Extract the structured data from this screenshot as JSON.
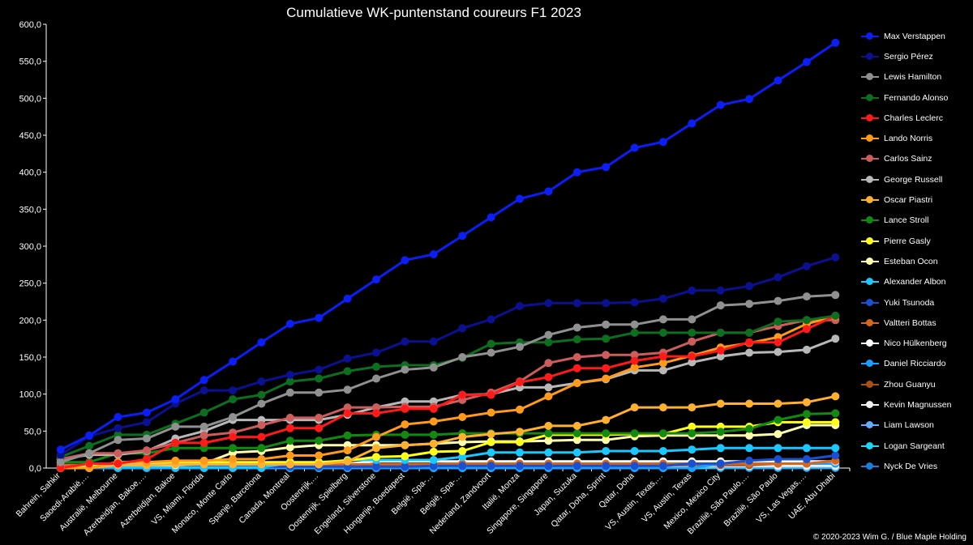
{
  "chart_data": {
    "type": "line",
    "title": "Cumulatieve WK-puntenstand coureurs F1 2023",
    "ylim": [
      0,
      600
    ],
    "ytick_labels": [
      "0,0",
      "50,0",
      "100,0",
      "150,0",
      "200,0",
      "250,0",
      "300,0",
      "350,0",
      "400,0",
      "450,0",
      "500,0",
      "550,0",
      "600,0"
    ],
    "ytick_values": [
      0,
      50,
      100,
      150,
      200,
      250,
      300,
      350,
      400,
      450,
      500,
      550,
      600
    ],
    "grid": false,
    "legend_position": "right",
    "categories": [
      "Bahrein, Sahkir",
      "Saoedi-Arabië,…",
      "Australië, Melbourne",
      "Azerbeidjan, Bakoe,…",
      "Azerbeidjan, Bakoe",
      "VS, Miami, Florida",
      "Monaco, Monte Carlo",
      "Spanje, Barcelona",
      "Canada, Montreal",
      "Oostenrijk,…",
      "Oostenrijk, Spielberg",
      "Engeland, Silverstone",
      "Hongarije, Boedapest",
      "België, Spa-…",
      "België, Spa-…",
      "Nederland, Zandvoort",
      "Italië, Monza",
      "Singapore, Singapore",
      "Japan, Suzuka",
      "Qatar, Doha, Sprint",
      "Qatar, Doha",
      "VS, Austin, Texas,…",
      "VS, Austin, Texas",
      "Mexico, Mexico City",
      "Brazilië, São Paulo,…",
      "Brazilië, São Paulo",
      "VS, Las Vegas,…",
      "UAE, Abu Dhabi"
    ],
    "series": [
      {
        "name": "Max Verstappen",
        "color": "#0a1ef5",
        "values": [
          25,
          44,
          69,
          75,
          93,
          119,
          144,
          170,
          195,
          203,
          229,
          255,
          281,
          289,
          314,
          339,
          364,
          374,
          400,
          407,
          433,
          441,
          466,
          491,
          499,
          524,
          549,
          575
        ]
      },
      {
        "name": "Sergio Pérez",
        "color": "#0a1090",
        "values": [
          18,
          43,
          54,
          62,
          87,
          105,
          105,
          117,
          126,
          133,
          148,
          156,
          171,
          171,
          189,
          201,
          219,
          223,
          223,
          223,
          224,
          229,
          240,
          240,
          246,
          258,
          273,
          285
        ]
      },
      {
        "name": "Lewis Hamilton",
        "color": "#909090",
        "values": [
          8,
          20,
          38,
          40,
          56,
          56,
          69,
          87,
          102,
          102,
          106,
          121,
          133,
          136,
          150,
          156,
          164,
          180,
          190,
          194,
          194,
          201,
          201,
          220,
          222,
          226,
          232,
          234
        ]
      },
      {
        "name": "Fernando Alonso",
        "color": "#0c6e1e",
        "values": [
          15,
          30,
          45,
          45,
          60,
          75,
          93,
          99,
          117,
          121,
          131,
          137,
          139,
          139,
          149,
          168,
          170,
          170,
          174,
          175,
          183,
          183,
          183,
          183,
          183,
          198,
          200,
          206
        ]
      },
      {
        "name": "Charles Leclerc",
        "color": "#ff1a1a",
        "values": [
          0,
          6,
          6,
          12,
          34,
          34,
          42,
          42,
          54,
          54,
          74,
          74,
          80,
          80,
          99,
          99,
          116,
          123,
          135,
          135,
          145,
          151,
          151,
          159,
          170,
          170,
          188,
          206
        ]
      },
      {
        "name": "Lando Norris",
        "color": "#ff9a1a",
        "values": [
          0,
          0,
          8,
          8,
          10,
          10,
          12,
          12,
          17,
          17,
          24,
          42,
          59,
          63,
          69,
          75,
          79,
          97,
          115,
          121,
          136,
          142,
          152,
          163,
          169,
          177,
          195,
          205
        ]
      },
      {
        "name": "Carlos Sainz",
        "color": "#cd5c5c",
        "values": [
          12,
          20,
          20,
          24,
          34,
          44,
          48,
          58,
          68,
          68,
          82,
          82,
          83,
          83,
          92,
          102,
          117,
          142,
          150,
          153,
          153,
          156,
          171,
          183,
          183,
          192,
          200,
          200
        ]
      },
      {
        "name": "George Russell",
        "color": "#b8b8b8",
        "values": [
          12,
          18,
          18,
          23,
          40,
          50,
          65,
          65,
          65,
          65,
          72,
          82,
          90,
          90,
          99,
          100,
          109,
          109,
          115,
          120,
          132,
          132,
          143,
          151,
          156,
          157,
          160,
          175
        ]
      },
      {
        "name": "Oscar Piastri",
        "color": "#ffb02e",
        "values": [
          0,
          0,
          4,
          4,
          5,
          5,
          5,
          5,
          5,
          5,
          9,
          27,
          31,
          33,
          42,
          46,
          49,
          57,
          57,
          65,
          82,
          82,
          82,
          87,
          87,
          87,
          89,
          97
        ]
      },
      {
        "name": "Lance Stroll",
        "color": "#128a12",
        "values": [
          8,
          8,
          20,
          20,
          27,
          27,
          27,
          27,
          37,
          37,
          44,
          45,
          45,
          45,
          47,
          47,
          47,
          47,
          47,
          47,
          47,
          47,
          47,
          49,
          53,
          65,
          73,
          74
        ]
      },
      {
        "name": "Pierre Gasly",
        "color": "#ffff1a",
        "values": [
          0,
          1,
          8,
          8,
          8,
          8,
          8,
          8,
          8,
          8,
          10,
          15,
          16,
          22,
          23,
          35,
          35,
          45,
          45,
          45,
          46,
          46,
          56,
          56,
          56,
          62,
          62,
          62
        ]
      },
      {
        "name": "Esteban Ocon",
        "color": "#ffffb0",
        "values": [
          0,
          4,
          4,
          4,
          4,
          6,
          21,
          23,
          28,
          31,
          31,
          31,
          31,
          33,
          35,
          36,
          36,
          37,
          38,
          38,
          43,
          44,
          44,
          44,
          44,
          46,
          58,
          58
        ]
      },
      {
        "name": "Alexander Albon",
        "color": "#18c8ff",
        "values": [
          1,
          1,
          1,
          1,
          1,
          1,
          1,
          1,
          7,
          7,
          11,
          11,
          11,
          11,
          15,
          21,
          21,
          21,
          21,
          23,
          23,
          23,
          25,
          27,
          27,
          27,
          27,
          27
        ]
      },
      {
        "name": "Yuki Tsunoda",
        "color": "#1a4fcf",
        "values": [
          0,
          0,
          1,
          1,
          1,
          2,
          2,
          2,
          2,
          2,
          2,
          2,
          2,
          3,
          3,
          3,
          3,
          3,
          3,
          3,
          3,
          3,
          6,
          6,
          10,
          12,
          12,
          17
        ]
      },
      {
        "name": "Valtteri Bottas",
        "color": "#d8661a",
        "values": [
          4,
          4,
          4,
          4,
          4,
          4,
          4,
          4,
          4,
          4,
          5,
          5,
          5,
          5,
          6,
          6,
          6,
          6,
          6,
          6,
          6,
          6,
          6,
          6,
          6,
          6,
          6,
          10
        ]
      },
      {
        "name": "Nico Hülkenberg",
        "color": "#ffffff",
        "values": [
          0,
          6,
          6,
          6,
          6,
          6,
          6,
          6,
          6,
          6,
          6,
          9,
          9,
          9,
          9,
          9,
          9,
          9,
          9,
          9,
          9,
          9,
          9,
          9,
          9,
          9,
          9,
          9
        ]
      },
      {
        "name": "Daniel Ricciardo",
        "color": "#1aa0ff",
        "values": [
          0,
          0,
          0,
          0,
          0,
          0,
          0,
          0,
          0,
          0,
          0,
          0,
          0,
          0,
          0,
          0,
          0,
          0,
          0,
          0,
          0,
          0,
          0,
          6,
          6,
          6,
          6,
          6
        ]
      },
      {
        "name": "Zhou Guanyu",
        "color": "#a8501a",
        "values": [
          0,
          0,
          0,
          0,
          0,
          0,
          0,
          0,
          0,
          0,
          0,
          0,
          0,
          2,
          2,
          2,
          2,
          2,
          2,
          2,
          4,
          4,
          4,
          4,
          4,
          6,
          6,
          6
        ]
      },
      {
        "name": "Kevin Magnussen",
        "color": "#f0f0f0",
        "values": [
          0,
          0,
          0,
          0,
          0,
          0,
          0,
          0,
          0,
          0,
          0,
          1,
          1,
          3,
          3,
          3,
          3,
          3,
          3,
          3,
          3,
          3,
          3,
          3,
          3,
          3,
          3,
          3
        ]
      },
      {
        "name": "Liam Lawson",
        "color": "#66aaff",
        "values": [
          0,
          0,
          0,
          0,
          0,
          0,
          0,
          0,
          0,
          0,
          0,
          0,
          0,
          0,
          0,
          0,
          2,
          2,
          2,
          2,
          2,
          2,
          2,
          2,
          2,
          2,
          2,
          2
        ]
      },
      {
        "name": "Logan Sargeant",
        "color": "#18d8f5",
        "values": [
          0,
          0,
          0,
          0,
          0,
          0,
          0,
          0,
          0,
          0,
          0,
          0,
          0,
          0,
          0,
          0,
          0,
          0,
          0,
          0,
          0,
          0,
          0,
          1,
          1,
          1,
          1,
          1
        ]
      },
      {
        "name": "Nyck De Vries",
        "color": "#1a7fd8",
        "values": [
          0,
          0,
          0,
          0,
          0,
          0,
          0,
          0,
          0,
          0,
          0,
          0,
          0,
          0,
          0,
          0,
          0,
          0,
          0,
          0,
          0,
          0,
          0,
          0,
          0,
          0,
          0,
          0
        ]
      }
    ]
  },
  "copyright": "© 2020-2023 Wim G. / Blue Maple Holding"
}
